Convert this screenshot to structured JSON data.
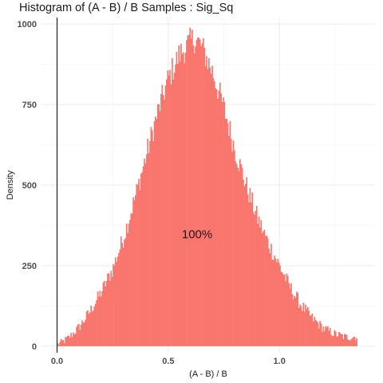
{
  "chart_data": {
    "type": "bar",
    "title": "Histogram of (A - B) / B Samples : Sig_Sq",
    "xlabel": "(A - B) / B",
    "ylabel": "Density",
    "xlim": [
      -0.07,
      1.43
    ],
    "ylim": [
      -20,
      1020
    ],
    "x_ticks": [
      0.0,
      0.5,
      1.0
    ],
    "x_tick_labels": [
      "0.0",
      "0.5",
      "1.0"
    ],
    "y_ticks": [
      0,
      250,
      500,
      750,
      1000
    ],
    "y_tick_labels": [
      "0",
      "250",
      "500",
      "750",
      "1000"
    ],
    "grid": true,
    "legend": "none",
    "bar_color": "#F8766D",
    "vline_x": 0,
    "bin_range": [
      0.0,
      1.35
    ],
    "bins": 270,
    "profile": [
      {
        "x": 0.0,
        "y": 5
      },
      {
        "x": 0.05,
        "y": 25
      },
      {
        "x": 0.1,
        "y": 60
      },
      {
        "x": 0.15,
        "y": 110
      },
      {
        "x": 0.2,
        "y": 170
      },
      {
        "x": 0.25,
        "y": 240
      },
      {
        "x": 0.3,
        "y": 340
      },
      {
        "x": 0.35,
        "y": 460
      },
      {
        "x": 0.4,
        "y": 590
      },
      {
        "x": 0.45,
        "y": 720
      },
      {
        "x": 0.5,
        "y": 830
      },
      {
        "x": 0.55,
        "y": 905
      },
      {
        "x": 0.6,
        "y": 945
      },
      {
        "x": 0.62,
        "y": 955
      },
      {
        "x": 0.65,
        "y": 930
      },
      {
        "x": 0.7,
        "y": 850
      },
      {
        "x": 0.75,
        "y": 740
      },
      {
        "x": 0.8,
        "y": 610
      },
      {
        "x": 0.85,
        "y": 500
      },
      {
        "x": 0.9,
        "y": 400
      },
      {
        "x": 0.95,
        "y": 320
      },
      {
        "x": 1.0,
        "y": 250
      },
      {
        "x": 1.05,
        "y": 180
      },
      {
        "x": 1.1,
        "y": 125
      },
      {
        "x": 1.15,
        "y": 85
      },
      {
        "x": 1.2,
        "y": 55
      },
      {
        "x": 1.25,
        "y": 38
      },
      {
        "x": 1.3,
        "y": 28
      },
      {
        "x": 1.35,
        "y": 30
      }
    ],
    "annotations": [
      {
        "text": "100%",
        "x": 0.63,
        "y": 335
      }
    ]
  }
}
